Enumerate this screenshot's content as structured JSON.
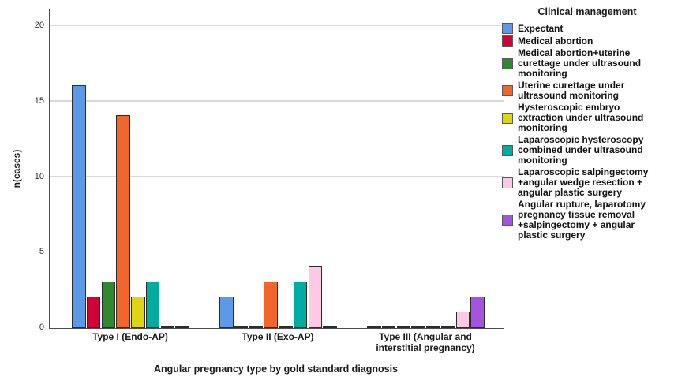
{
  "chart_data": {
    "type": "bar",
    "legend_title": "Clinical management",
    "xlabel": "Angular pregnancy type by gold standard diagnosis",
    "ylabel": "n(cases)",
    "categories": [
      "Type I (Endo-AP)",
      "Type II (Exo-AP)",
      "Type III (Angular and\ninterstitial pregnancy)"
    ],
    "series": [
      {
        "name": "Expectant",
        "color": "#5C99E6",
        "values": [
          16,
          2,
          0
        ]
      },
      {
        "name": "Medical abortion",
        "color": "#D00238",
        "values": [
          2,
          0,
          0
        ]
      },
      {
        "name": "Medical abortion+uterine\ncurettage under ultrasound\nmonitoring",
        "color": "#2F8A2F",
        "values": [
          3,
          0,
          0
        ]
      },
      {
        "name": "Uterine curettage under\nultrasound monitoring",
        "color": "#F1662A",
        "values": [
          14,
          3,
          0
        ]
      },
      {
        "name": "Hysteroscopic embryo\nextraction under ultrasound\nmonitoring",
        "color": "#E0D513",
        "values": [
          2,
          0,
          0
        ]
      },
      {
        "name": "Laparoscopic hysteroscopy\ncombined under ultrasound\nmonitoring",
        "color": "#00AC9F",
        "values": [
          3,
          3,
          0
        ]
      },
      {
        "name": "Laparoscopic salpingectomy\n+angular wedge resection +\nangular plastic surgery",
        "color": "#FFC9E5",
        "values": [
          0,
          4,
          1
        ]
      },
      {
        "name": "Angular rupture, laparotomy\npregnancy tissue removal\n+salpingectomy + angular\nplastic surgery",
        "color": "#A453E0",
        "values": [
          0,
          0,
          2
        ]
      }
    ],
    "yticks": [
      0,
      5,
      10,
      15,
      20
    ],
    "ylim": [
      0,
      21
    ],
    "grid": true,
    "legend_position": "right",
    "colors": {
      "axis": "#4d4d4d",
      "gridline": "#d9d9d9",
      "bar_outline": "#2d2d2d"
    }
  }
}
